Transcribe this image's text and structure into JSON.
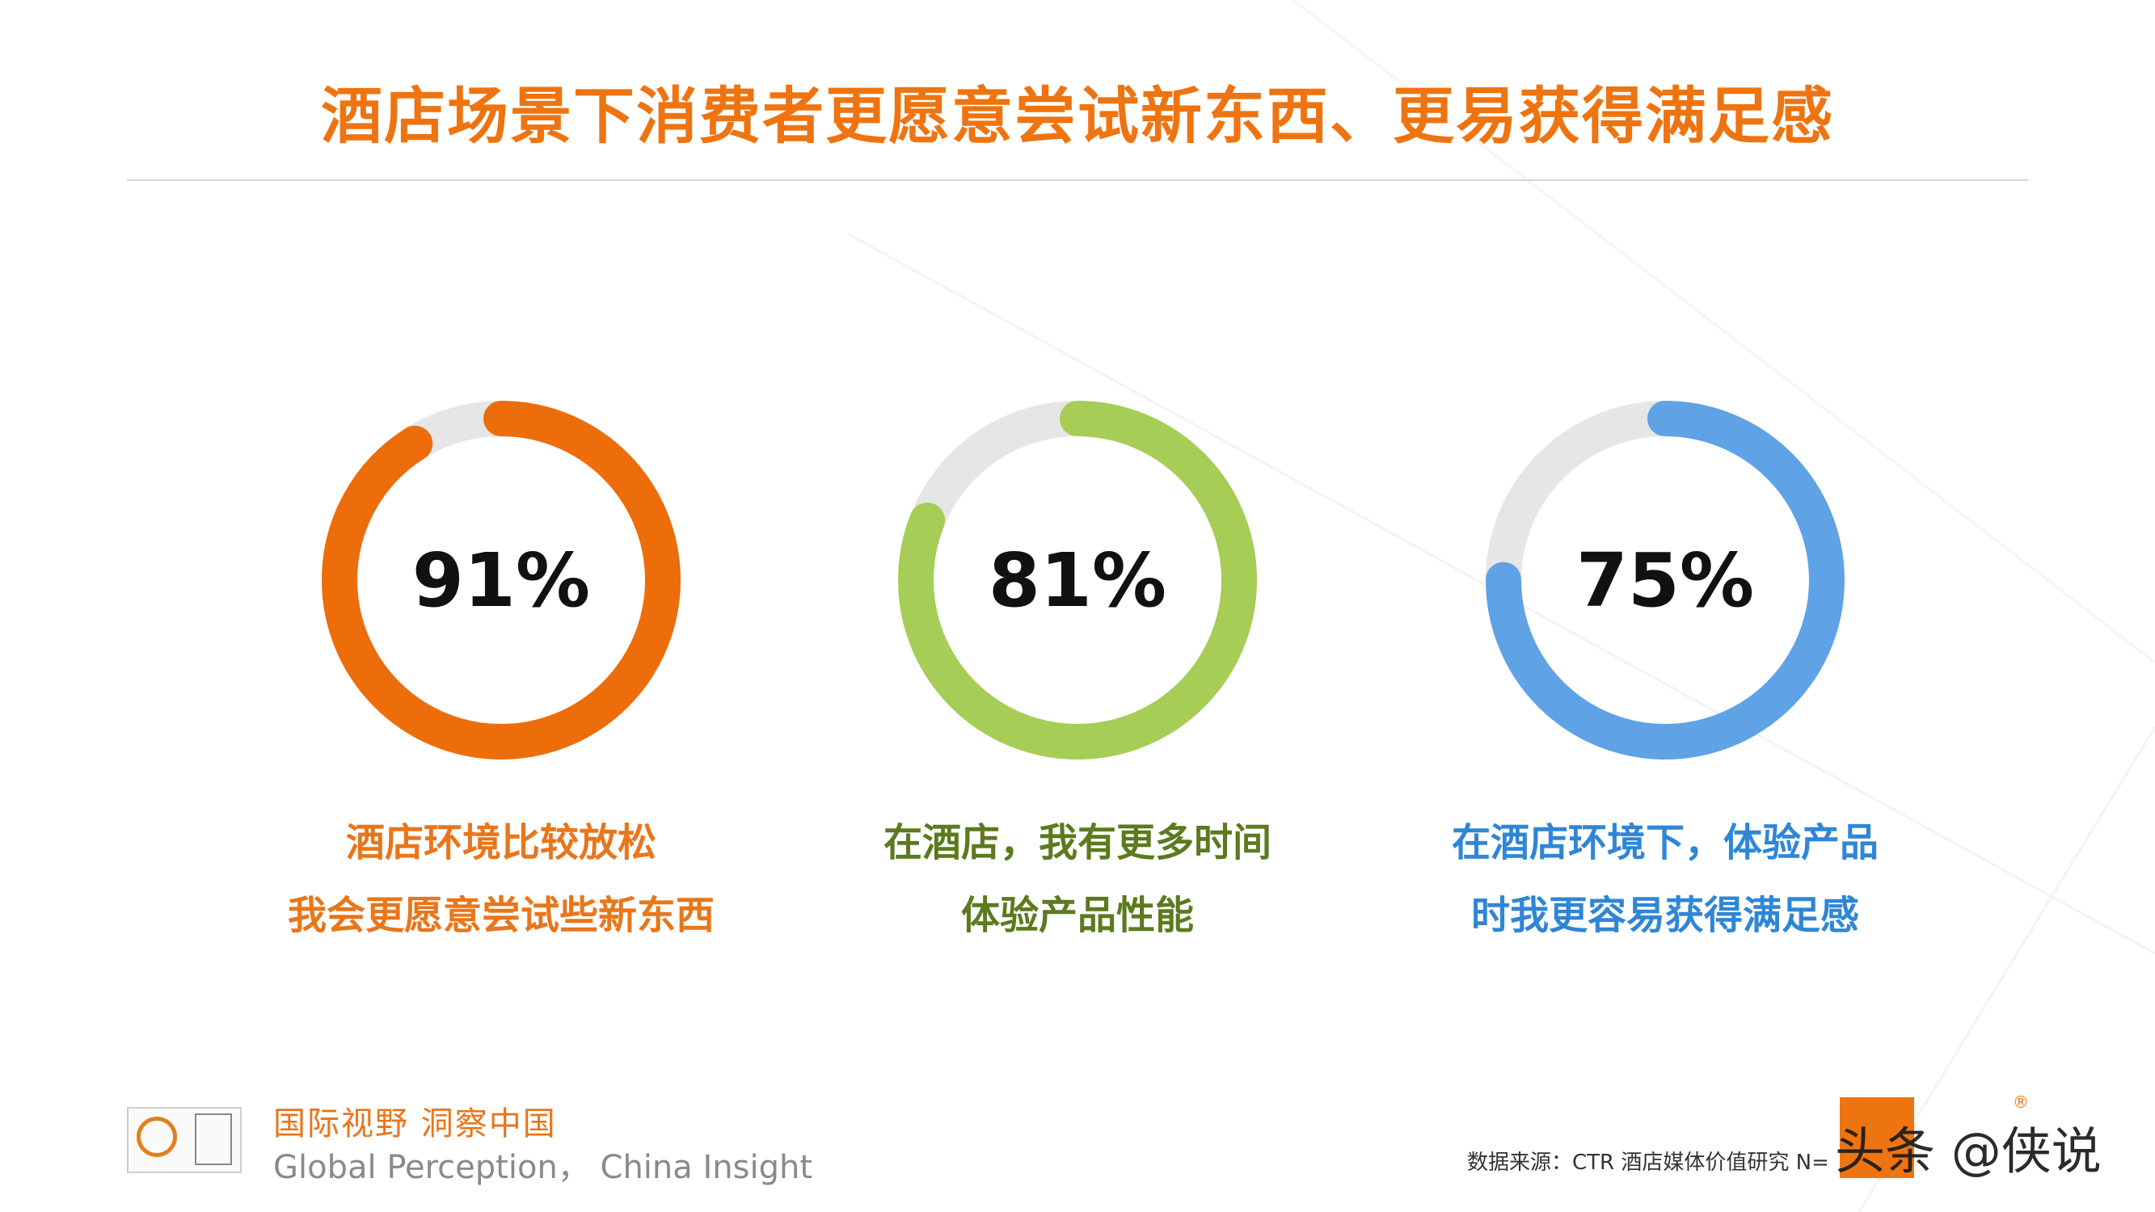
{
  "title": "酒店场景下消费者更愿意尝试新东西、更易获得满足感",
  "chart_data": {
    "type": "donut",
    "items": [
      {
        "value": 91,
        "label": "91%",
        "caption": [
          "酒店环境比较放松",
          "我会更愿意尝试些新东西"
        ],
        "color": "#ed6d0b",
        "caption_color": "#e8761b"
      },
      {
        "value": 81,
        "label": "81%",
        "caption": [
          "在酒店，我有更多时间",
          "体验产品性能"
        ],
        "color": "#a6cd56",
        "caption_color": "#5c7a1e"
      },
      {
        "value": 75,
        "label": "75%",
        "caption": [
          "在酒店环境下，体验产品",
          "时我更容易获得满足感"
        ],
        "color": "#5fa3e6",
        "caption_color": "#2f86d6"
      }
    ],
    "track_color": "#e6e6e6"
  },
  "footer": {
    "slogan_cn": "国际视野 洞察中国",
    "slogan_en": "Global Perception， China Insight",
    "source": "数据来源：CTR 酒店媒体价值研究  N=",
    "watermark": "头条 @侠说"
  }
}
